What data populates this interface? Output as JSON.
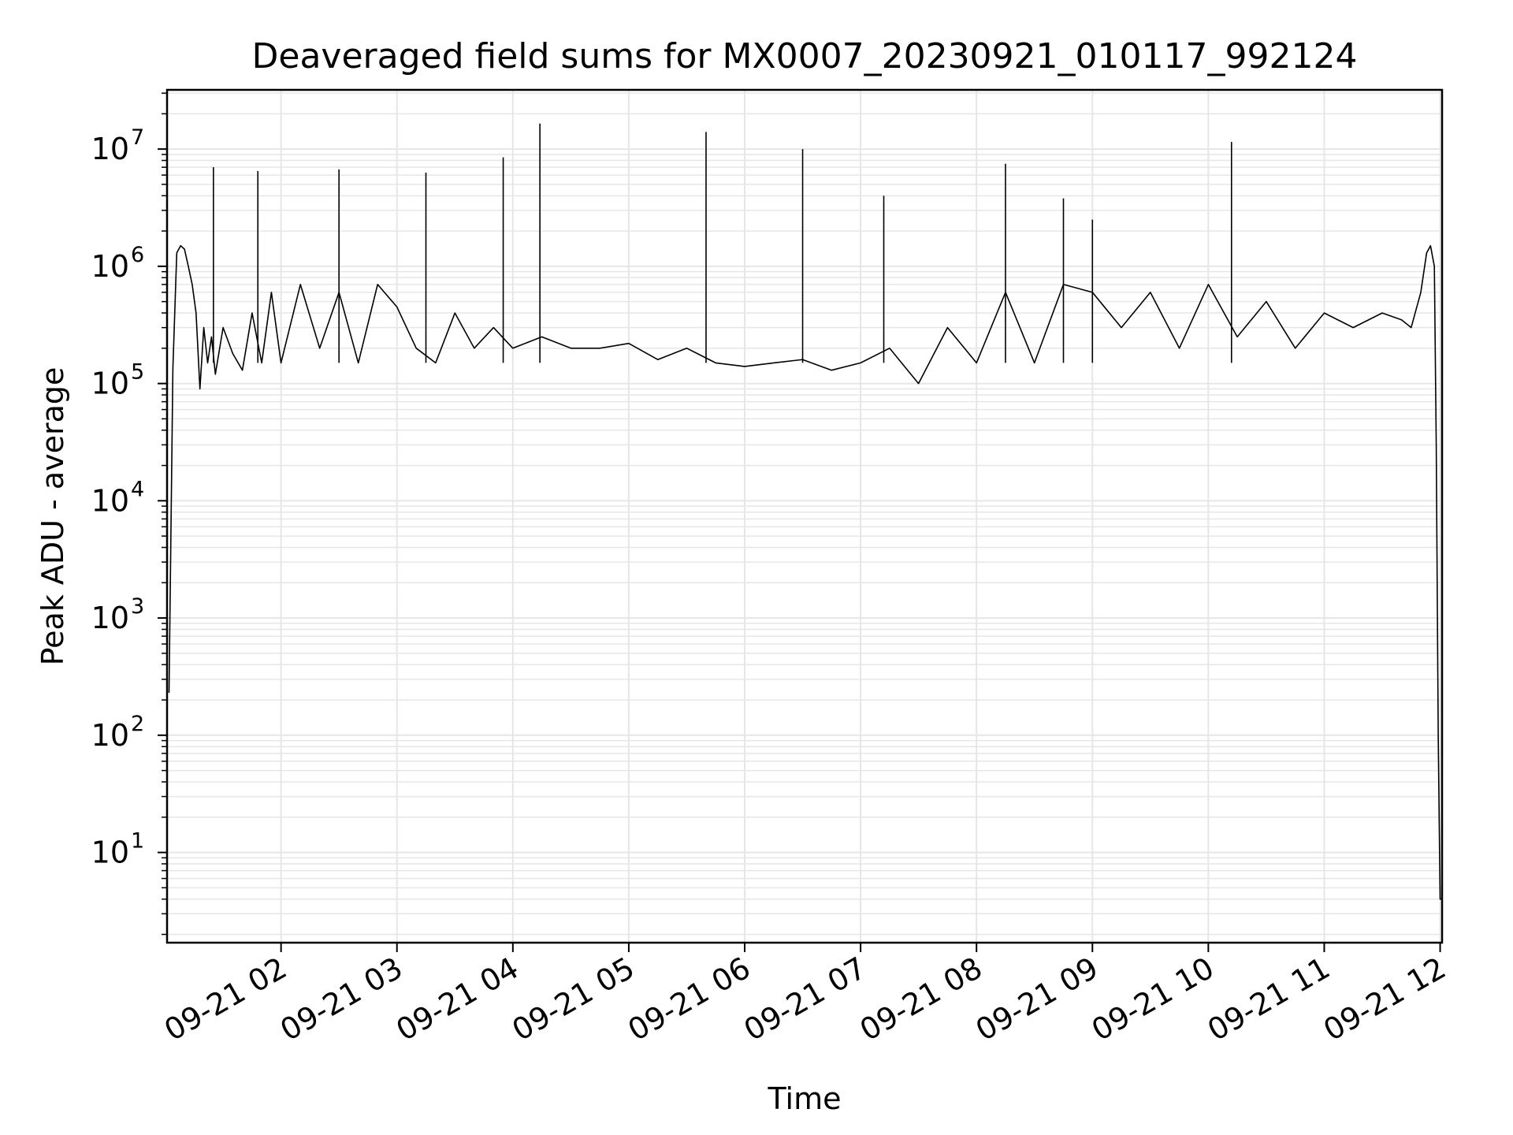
{
  "chart_data": {
    "type": "line",
    "title": "Deaveraged field sums for MX0007_20230921_010117_992124",
    "xlabel": "Time",
    "ylabel": "Peak ADU - average",
    "yscale": "log",
    "ylim": [
      1.7,
      32000000
    ],
    "xlim": [
      "2023-09-21 01:01",
      "2023-09-21 12:01"
    ],
    "grid": true,
    "line_color": "#000000",
    "grid_color": "#e6e6e6",
    "x_ticks": [
      {
        "label": "09-21 02",
        "value": "2023-09-21 02:00"
      },
      {
        "label": "09-21 03",
        "value": "2023-09-21 03:00"
      },
      {
        "label": "09-21 04",
        "value": "2023-09-21 04:00"
      },
      {
        "label": "09-21 05",
        "value": "2023-09-21 05:00"
      },
      {
        "label": "09-21 06",
        "value": "2023-09-21 06:00"
      },
      {
        "label": "09-21 07",
        "value": "2023-09-21 07:00"
      },
      {
        "label": "09-21 08",
        "value": "2023-09-21 08:00"
      },
      {
        "label": "09-21 09",
        "value": "2023-09-21 09:00"
      },
      {
        "label": "09-21 10",
        "value": "2023-09-21 10:00"
      },
      {
        "label": "09-21 11",
        "value": "2023-09-21 11:00"
      },
      {
        "label": "09-21 12",
        "value": "2023-09-21 12:00"
      }
    ],
    "y_ticks": [
      {
        "base": "10",
        "exp": "1",
        "value": 10
      },
      {
        "base": "10",
        "exp": "2",
        "value": 100
      },
      {
        "base": "10",
        "exp": "3",
        "value": 1000
      },
      {
        "base": "10",
        "exp": "4",
        "value": 10000
      },
      {
        "base": "10",
        "exp": "5",
        "value": 100000
      },
      {
        "base": "10",
        "exp": "6",
        "value": 1000000
      },
      {
        "base": "10",
        "exp": "7",
        "value": 10000000
      }
    ],
    "series": [
      {
        "x": [
          "2023-09-21 01:02",
          "2023-09-21 01:04",
          "2023-09-21 01:06",
          "2023-09-21 01:08",
          "2023-09-21 01:10",
          "2023-09-21 01:12",
          "2023-09-21 01:14",
          "2023-09-21 01:16",
          "2023-09-21 01:18",
          "2023-09-21 01:20",
          "2023-09-21 01:22",
          "2023-09-21 01:24",
          "2023-09-21 01:26",
          "2023-09-21 01:30",
          "2023-09-21 01:35",
          "2023-09-21 01:40",
          "2023-09-21 01:45",
          "2023-09-21 01:50",
          "2023-09-21 01:55",
          "2023-09-21 02:00",
          "2023-09-21 02:10",
          "2023-09-21 02:20",
          "2023-09-21 02:30",
          "2023-09-21 02:40",
          "2023-09-21 02:50",
          "2023-09-21 03:00",
          "2023-09-21 03:10",
          "2023-09-21 03:20",
          "2023-09-21 03:30",
          "2023-09-21 03:40",
          "2023-09-21 03:50",
          "2023-09-21 04:00",
          "2023-09-21 04:15",
          "2023-09-21 04:30",
          "2023-09-21 04:45",
          "2023-09-21 05:00",
          "2023-09-21 05:15",
          "2023-09-21 05:30",
          "2023-09-21 05:45",
          "2023-09-21 06:00",
          "2023-09-21 06:15",
          "2023-09-21 06:30",
          "2023-09-21 06:45",
          "2023-09-21 07:00",
          "2023-09-21 07:15",
          "2023-09-21 07:30",
          "2023-09-21 07:45",
          "2023-09-21 08:00",
          "2023-09-21 08:15",
          "2023-09-21 08:30",
          "2023-09-21 08:45",
          "2023-09-21 09:00",
          "2023-09-21 09:15",
          "2023-09-21 09:30",
          "2023-09-21 09:45",
          "2023-09-21 10:00",
          "2023-09-21 10:15",
          "2023-09-21 10:30",
          "2023-09-21 10:45",
          "2023-09-21 11:00",
          "2023-09-21 11:15",
          "2023-09-21 11:30",
          "2023-09-21 11:40",
          "2023-09-21 11:45",
          "2023-09-21 11:50",
          "2023-09-21 11:53",
          "2023-09-21 11:55",
          "2023-09-21 11:57",
          "2023-09-21 11:58",
          "2023-09-21 11:59",
          "2023-09-21 12:00",
          "2023-09-21 12:01"
        ],
        "y": [
          230,
          135000,
          1300000,
          1500000,
          1400000,
          1000000,
          700000,
          400000,
          90000,
          300000,
          150000,
          250000,
          120000,
          300000,
          180000,
          130000,
          400000,
          150000,
          600000,
          150000,
          700000,
          200000,
          600000,
          150000,
          700000,
          450000,
          200000,
          150000,
          400000,
          200000,
          300000,
          200000,
          250000,
          200000,
          200000,
          220000,
          160000,
          200000,
          150000,
          140000,
          150000,
          160000,
          130000,
          150000,
          200000,
          100000,
          300000,
          150000,
          600000,
          150000,
          700000,
          600000,
          300000,
          600000,
          200000,
          700000,
          250000,
          500000,
          200000,
          400000,
          300000,
          400000,
          350000,
          300000,
          600000,
          1300000,
          1500000,
          1000000,
          30000,
          100,
          4,
          4
        ]
      }
    ],
    "spikes": [
      {
        "x": "2023-09-21 01:25",
        "y": 7000000
      },
      {
        "x": "2023-09-21 01:48",
        "y": 6500000
      },
      {
        "x": "2023-09-21 02:30",
        "y": 6700000
      },
      {
        "x": "2023-09-21 03:15",
        "y": 6300000
      },
      {
        "x": "2023-09-21 03:55",
        "y": 8500000
      },
      {
        "x": "2023-09-21 04:14",
        "y": 16500000
      },
      {
        "x": "2023-09-21 05:40",
        "y": 14000000
      },
      {
        "x": "2023-09-21 06:30",
        "y": 10000000
      },
      {
        "x": "2023-09-21 07:12",
        "y": 4000000
      },
      {
        "x": "2023-09-21 08:15",
        "y": 7500000
      },
      {
        "x": "2023-09-21 08:45",
        "y": 3800000
      },
      {
        "x": "2023-09-21 09:00",
        "y": 2500000
      },
      {
        "x": "2023-09-21 10:12",
        "y": 11500000
      }
    ]
  }
}
